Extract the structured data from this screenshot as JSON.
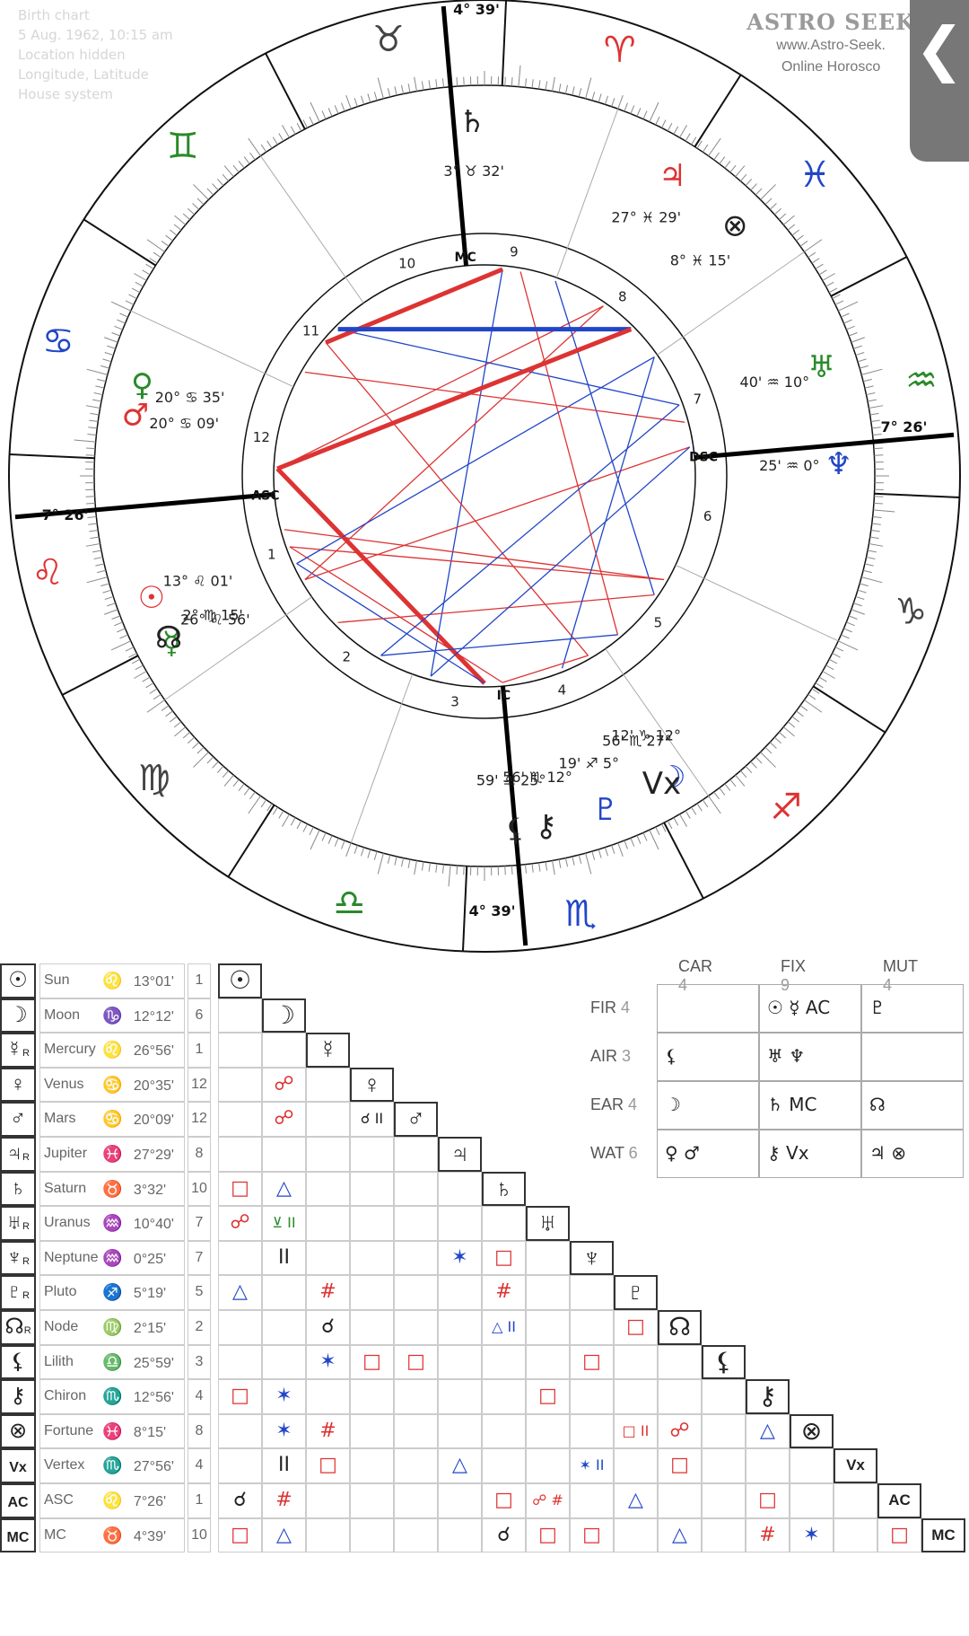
{
  "header": {
    "title": "Birth chart",
    "lines": [
      "5 Aug. 1962, 10:15 am",
      "Location hidden",
      "Longitude, Latitude",
      "House system"
    ]
  },
  "logo": {
    "brand": "ASTRO SEEK",
    "site": "www.Astro-Seek.",
    "tagline": "Online Horosco"
  },
  "back_button": {
    "glyph": "❮"
  },
  "wheel": {
    "signs": [
      "♈",
      "♉",
      "♊",
      "♋",
      "♌",
      "♍",
      "♎",
      "♏",
      "♐",
      "♑",
      "♒",
      "♓"
    ],
    "sign_colors": [
      "#d33",
      "#444",
      "#2a8a2a",
      "#2246c7",
      "#d33",
      "#444",
      "#2a8a2a",
      "#2246c7",
      "#d33",
      "#444",
      "#2a8a2a",
      "#2246c7"
    ],
    "house_numbers": [
      "1",
      "2",
      "3",
      "4",
      "5",
      "6",
      "7",
      "8",
      "9",
      "10",
      "11",
      "12"
    ],
    "labels": {
      "asc": "ASC",
      "dsc": "DSC",
      "mc": "MC",
      "ic": "IC"
    },
    "planet_labels": [
      {
        "glyph": "☉",
        "text": "13° ♌ 01'",
        "color": "#d33"
      },
      {
        "glyph": "☽",
        "text": "12' ♑ 12°",
        "color": "#2246c7"
      },
      {
        "glyph": "☿",
        "text": "26° ♌ 56'",
        "color": "#2a8a2a"
      },
      {
        "glyph": "♀",
        "text": "20° ♋ 35'",
        "color": "#2a8a2a"
      },
      {
        "glyph": "♂",
        "text": "20° ♋ 09'",
        "color": "#d33"
      },
      {
        "glyph": "♃",
        "text": "27° ♓ 29'",
        "color": "#d33"
      },
      {
        "glyph": "♄",
        "text": "3° ♉ 32'",
        "color": "#222"
      },
      {
        "glyph": "♅",
        "text": "40' ♒ 10°",
        "color": "#2a8a2a"
      },
      {
        "glyph": "♆",
        "text": "25' ♒ 0°",
        "color": "#2246c7"
      },
      {
        "glyph": "♇",
        "text": "19' ♐ 5°",
        "color": "#2246c7"
      },
      {
        "glyph": "☊",
        "text": "2° ♍ 15'",
        "color": "#222"
      },
      {
        "glyph": "⚸",
        "text": "59' ♎ 25°",
        "color": "#222"
      },
      {
        "glyph": "⚷",
        "text": "56' ♏ 12°",
        "color": "#222"
      },
      {
        "glyph": "⊗",
        "text": "8° ♓ 15'",
        "color": "#222"
      },
      {
        "glyph": "Vx",
        "text": "56' ♏ 27°",
        "color": "#222"
      }
    ],
    "cusp_degrees": {
      "asc": "7° 26'",
      "dsc": "7° 26'",
      "mc": "4° 39'",
      "ic": "4° 39'"
    }
  },
  "aspect_table": {
    "rows": [
      {
        "sym": "☉",
        "r": "",
        "name": "Sun",
        "sign": "♌",
        "deg": "13°01'",
        "house": "1"
      },
      {
        "sym": "☽",
        "r": "",
        "name": "Moon",
        "sign": "♑",
        "deg": "12°12'",
        "house": "6"
      },
      {
        "sym": "☿",
        "r": "R",
        "name": "Mercury",
        "sign": "♌",
        "deg": "26°56'",
        "house": "1"
      },
      {
        "sym": "♀",
        "r": "",
        "name": "Venus",
        "sign": "♋",
        "deg": "20°35'",
        "house": "12"
      },
      {
        "sym": "♂",
        "r": "",
        "name": "Mars",
        "sign": "♋",
        "deg": "20°09'",
        "house": "12"
      },
      {
        "sym": "♃",
        "r": "R",
        "name": "Jupiter",
        "sign": "♓",
        "deg": "27°29'",
        "house": "8"
      },
      {
        "sym": "♄",
        "r": "",
        "name": "Saturn",
        "sign": "♉",
        "deg": "3°32'",
        "house": "10"
      },
      {
        "sym": "♅",
        "r": "R",
        "name": "Uranus",
        "sign": "♒",
        "deg": "10°40'",
        "house": "7"
      },
      {
        "sym": "♆",
        "r": "R",
        "name": "Neptune",
        "sign": "♒",
        "deg": "0°25'",
        "house": "7"
      },
      {
        "sym": "♇",
        "r": "R",
        "name": "Pluto",
        "sign": "♐",
        "deg": "5°19'",
        "house": "5"
      },
      {
        "sym": "☊",
        "r": "R",
        "name": "Node",
        "sign": "♍",
        "deg": "2°15'",
        "house": "2"
      },
      {
        "sym": "⚸",
        "r": "",
        "name": "Lilith",
        "sign": "♎",
        "deg": "25°59'",
        "house": "3"
      },
      {
        "sym": "⚷",
        "r": "",
        "name": "Chiron",
        "sign": "♏",
        "deg": "12°56'",
        "house": "4"
      },
      {
        "sym": "⊗",
        "r": "",
        "name": "Fortune",
        "sign": "♓",
        "deg": "8°15'",
        "house": "8"
      },
      {
        "sym": "Vx",
        "r": "",
        "name": "Vertex",
        "sign": "♏",
        "deg": "27°56'",
        "house": "4"
      },
      {
        "sym": "AC",
        "r": "",
        "name": "ASC",
        "sign": "♌",
        "deg": "7°26'",
        "house": "1"
      },
      {
        "sym": "MC",
        "r": "",
        "name": "MC",
        "sign": "♉",
        "deg": "4°39'",
        "house": "10"
      }
    ],
    "aspects": [
      {
        "row": 3,
        "col": 1,
        "g": "☍",
        "c": "#d33"
      },
      {
        "row": 4,
        "col": 1,
        "g": "☍",
        "c": "#d33"
      },
      {
        "row": 4,
        "col": 3,
        "g": "☌ II",
        "c": "#222"
      },
      {
        "row": 6,
        "col": 0,
        "g": "□",
        "c": "#d33"
      },
      {
        "row": 6,
        "col": 1,
        "g": "△",
        "c": "#2246c7"
      },
      {
        "row": 7,
        "col": 0,
        "g": "☍",
        "c": "#d33"
      },
      {
        "row": 7,
        "col": 1,
        "g": "⊻ II",
        "c": "#2a8a2a"
      },
      {
        "row": 8,
        "col": 1,
        "g": "II",
        "c": "#222"
      },
      {
        "row": 8,
        "col": 5,
        "g": "✶",
        "c": "#2246c7"
      },
      {
        "row": 8,
        "col": 6,
        "g": "□",
        "c": "#d33"
      },
      {
        "row": 9,
        "col": 0,
        "g": "△",
        "c": "#2246c7"
      },
      {
        "row": 9,
        "col": 2,
        "g": "#",
        "c": "#d33"
      },
      {
        "row": 9,
        "col": 6,
        "g": "#",
        "c": "#d33"
      },
      {
        "row": 10,
        "col": 2,
        "g": "☌",
        "c": "#222"
      },
      {
        "row": 10,
        "col": 6,
        "g": "△ II",
        "c": "#2246c7"
      },
      {
        "row": 10,
        "col": 9,
        "g": "□",
        "c": "#d33"
      },
      {
        "row": 11,
        "col": 2,
        "g": "✶",
        "c": "#2246c7"
      },
      {
        "row": 11,
        "col": 3,
        "g": "□",
        "c": "#d33"
      },
      {
        "row": 11,
        "col": 4,
        "g": "□",
        "c": "#d33"
      },
      {
        "row": 11,
        "col": 8,
        "g": "□",
        "c": "#d33"
      },
      {
        "row": 12,
        "col": 0,
        "g": "□",
        "c": "#d33"
      },
      {
        "row": 12,
        "col": 1,
        "g": "✶",
        "c": "#2246c7"
      },
      {
        "row": 12,
        "col": 7,
        "g": "□",
        "c": "#d33"
      },
      {
        "row": 13,
        "col": 1,
        "g": "✶",
        "c": "#2246c7"
      },
      {
        "row": 13,
        "col": 2,
        "g": "#",
        "c": "#d33"
      },
      {
        "row": 13,
        "col": 9,
        "g": "□ II",
        "c": "#d33"
      },
      {
        "row": 13,
        "col": 10,
        "g": "☍",
        "c": "#d33"
      },
      {
        "row": 13,
        "col": 12,
        "g": "△",
        "c": "#2246c7"
      },
      {
        "row": 14,
        "col": 1,
        "g": "II",
        "c": "#222"
      },
      {
        "row": 14,
        "col": 2,
        "g": "□",
        "c": "#d33"
      },
      {
        "row": 14,
        "col": 5,
        "g": "△",
        "c": "#2246c7"
      },
      {
        "row": 14,
        "col": 8,
        "g": "✶ II",
        "c": "#2246c7"
      },
      {
        "row": 14,
        "col": 10,
        "g": "□",
        "c": "#d33"
      },
      {
        "row": 15,
        "col": 0,
        "g": "☌",
        "c": "#222"
      },
      {
        "row": 15,
        "col": 1,
        "g": "#",
        "c": "#d33"
      },
      {
        "row": 15,
        "col": 6,
        "g": "□",
        "c": "#d33"
      },
      {
        "row": 15,
        "col": 7,
        "g": "☍ #",
        "c": "#d33"
      },
      {
        "row": 15,
        "col": 9,
        "g": "△",
        "c": "#2246c7"
      },
      {
        "row": 15,
        "col": 12,
        "g": "□",
        "c": "#d33"
      },
      {
        "row": 16,
        "col": 0,
        "g": "□",
        "c": "#d33"
      },
      {
        "row": 16,
        "col": 1,
        "g": "△",
        "c": "#2246c7"
      },
      {
        "row": 16,
        "col": 6,
        "g": "☌",
        "c": "#222"
      },
      {
        "row": 16,
        "col": 7,
        "g": "□",
        "c": "#d33"
      },
      {
        "row": 16,
        "col": 8,
        "g": "□",
        "c": "#d33"
      },
      {
        "row": 16,
        "col": 10,
        "g": "△",
        "c": "#2246c7"
      },
      {
        "row": 16,
        "col": 12,
        "g": "#",
        "c": "#d33"
      },
      {
        "row": 16,
        "col": 13,
        "g": "✶",
        "c": "#2246c7"
      },
      {
        "row": 16,
        "col": 15,
        "g": "□",
        "c": "#d33"
      }
    ]
  },
  "elements_table": {
    "columns": [
      {
        "label": "CAR",
        "n": "4"
      },
      {
        "label": "FIX",
        "n": "9"
      },
      {
        "label": "MUT",
        "n": "4"
      }
    ],
    "rows": [
      {
        "label": "FIR",
        "n": "4",
        "cells": [
          "",
          "☉ ☿ AC",
          "♇"
        ]
      },
      {
        "label": "AIR",
        "n": "3",
        "cells": [
          "⚸",
          "♅ ♆",
          ""
        ]
      },
      {
        "label": "EAR",
        "n": "4",
        "cells": [
          "☽",
          "♄ MC",
          "☊"
        ]
      },
      {
        "label": "WAT",
        "n": "6",
        "cells": [
          "♀ ♂",
          "⚷ Vx",
          "♃ ⊗"
        ]
      }
    ]
  }
}
